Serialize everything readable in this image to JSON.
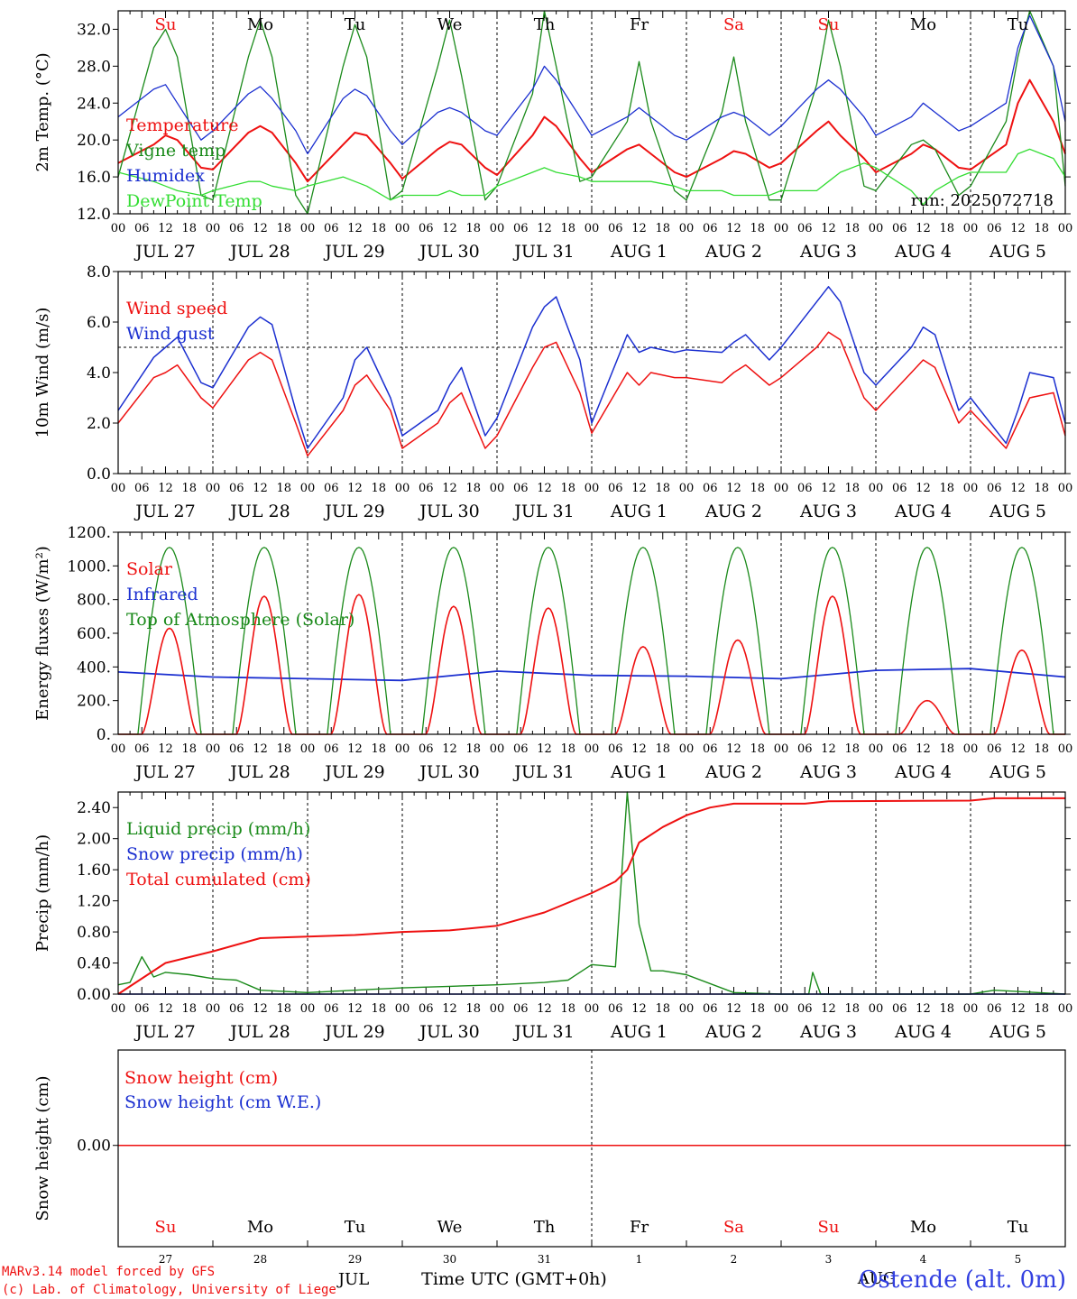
{
  "colors": {
    "temperature": "#ee1111",
    "vigne": "#1a8a1a",
    "humidex": "#1b2fd0",
    "dewpoint": "#33dd33",
    "wind_speed": "#ee1111",
    "wind_gust": "#1b2fd0",
    "solar": "#ee1111",
    "infrared": "#1b2fd0",
    "toa": "#1a8a1a",
    "liquid": "#1a8a1a",
    "snow": "#1b2fd0",
    "cumulated": "#ee1111",
    "weekend": "#ee1111",
    "weekday": "#000000",
    "location": "#3340e0",
    "credits": "#ee1111"
  },
  "days": {
    "abbrev": [
      "Su",
      "Mo",
      "Tu",
      "We",
      "Th",
      "Fr",
      "Sa",
      "Su",
      "Mo",
      "Tu"
    ],
    "weekend": [
      true,
      false,
      false,
      false,
      false,
      false,
      true,
      true,
      false,
      false
    ],
    "date_labels": [
      "JUL 27",
      "JUL 28",
      "JUL 29",
      "JUL 30",
      "JUL 31",
      "AUG  1",
      "AUG  2",
      "AUG  3",
      "AUG  4",
      "AUG  5"
    ],
    "day_numbers": [
      "27",
      "28",
      "29",
      "30",
      "31",
      "1",
      "2",
      "3",
      "4",
      "5"
    ],
    "hour_ticks": [
      "00",
      "06",
      "12",
      "18"
    ],
    "end_tick": "00"
  },
  "chart_data": [
    {
      "type": "line",
      "name": "temperature-panel",
      "ylabel": "2m Temp. (°C)",
      "ylim": [
        12,
        34
      ],
      "yticks": [
        "12.0",
        "16.0",
        "20.0",
        "24.0",
        "28.0",
        "32.0"
      ],
      "run_label": "run: 2025072718",
      "x_hours": [
        0,
        9,
        12,
        15,
        21,
        24,
        33,
        36,
        39,
        45,
        48,
        57,
        60,
        63,
        69,
        72,
        81,
        84,
        87,
        93,
        96,
        105,
        108,
        111,
        117,
        120,
        129,
        132,
        135,
        141,
        144,
        153,
        156,
        159,
        165,
        168,
        177,
        180,
        183,
        189,
        192,
        201,
        204,
        207,
        213,
        216,
        225,
        228,
        231,
        237,
        240
      ],
      "series": [
        {
          "name": "Temperature",
          "color_key": "temperature",
          "values": [
            17.5,
            19.5,
            20.5,
            20.0,
            17.0,
            16.8,
            20.8,
            21.5,
            20.8,
            17.5,
            15.5,
            19.5,
            20.8,
            20.5,
            17.5,
            15.8,
            19.0,
            19.8,
            19.5,
            17.0,
            16.2,
            20.5,
            22.5,
            21.5,
            18.0,
            16.5,
            19.0,
            19.5,
            18.5,
            16.5,
            16.0,
            18.0,
            18.8,
            18.5,
            17.0,
            17.5,
            21.0,
            22.0,
            20.5,
            18.0,
            16.5,
            18.5,
            19.5,
            19.0,
            17.0,
            16.8,
            19.5,
            24.0,
            26.5,
            22.0,
            18.5
          ]
        },
        {
          "name": "Vigne temp",
          "color_key": "vigne",
          "values": [
            16.0,
            30.0,
            32.0,
            29.0,
            14.0,
            13.5,
            29.0,
            33.0,
            29.0,
            14.0,
            12.0,
            28.0,
            32.5,
            29.0,
            13.5,
            14.5,
            28.0,
            33.0,
            27.0,
            13.5,
            15.0,
            25.0,
            34.0,
            28.0,
            15.5,
            16.0,
            22.0,
            28.5,
            22.0,
            14.5,
            13.5,
            23.0,
            29.0,
            22.0,
            13.5,
            13.5,
            26.0,
            33.0,
            28.0,
            15.0,
            14.5,
            19.5,
            20.0,
            19.0,
            14.0,
            15.0,
            22.0,
            29.0,
            34.0,
            28.0,
            15.0
          ]
        },
        {
          "name": "Humidex",
          "color_key": "humidex",
          "values": [
            22.5,
            25.5,
            26.0,
            24.0,
            20.0,
            21.0,
            25.0,
            25.8,
            24.5,
            21.0,
            18.5,
            24.5,
            25.5,
            24.8,
            21.0,
            19.5,
            23.0,
            23.5,
            23.0,
            21.0,
            20.5,
            25.5,
            28.0,
            26.5,
            22.5,
            20.5,
            22.5,
            23.5,
            22.5,
            20.5,
            20.0,
            22.5,
            23.0,
            22.5,
            20.5,
            21.5,
            25.5,
            26.5,
            25.5,
            22.5,
            20.5,
            22.5,
            24.0,
            23.0,
            21.0,
            21.5,
            24.0,
            30.0,
            33.5,
            28.0,
            22.0
          ]
        },
        {
          "name": "DewPoint Temp",
          "color_key": "dewpoint",
          "values": [
            16.5,
            15.5,
            15.0,
            14.5,
            14.0,
            14.5,
            15.5,
            15.5,
            15.0,
            14.5,
            15.0,
            16.0,
            15.5,
            15.0,
            13.5,
            14.0,
            14.0,
            14.5,
            14.0,
            14.0,
            15.0,
            16.5,
            17.0,
            16.5,
            16.0,
            15.5,
            15.5,
            15.5,
            15.5,
            15.0,
            14.5,
            14.5,
            14.0,
            14.0,
            14.0,
            14.5,
            14.5,
            15.5,
            16.5,
            17.5,
            17.0,
            14.5,
            13.0,
            14.5,
            16.0,
            16.5,
            16.5,
            18.5,
            19.0,
            18.0,
            16.0
          ]
        }
      ]
    },
    {
      "type": "line",
      "name": "wind-panel",
      "ylabel": "10m Wind (m/s)",
      "ylim": [
        0,
        8
      ],
      "yticks": [
        "0.0",
        "2.0",
        "4.0",
        "6.0",
        "8.0"
      ],
      "ref_line": 5,
      "x_hours": [
        0,
        9,
        12,
        15,
        21,
        24,
        33,
        36,
        39,
        45,
        48,
        57,
        60,
        63,
        69,
        72,
        81,
        84,
        87,
        93,
        96,
        105,
        108,
        111,
        117,
        120,
        129,
        132,
        135,
        141,
        144,
        153,
        156,
        159,
        165,
        168,
        177,
        180,
        183,
        189,
        192,
        201,
        204,
        207,
        213,
        216,
        225,
        228,
        231,
        237,
        240
      ],
      "series": [
        {
          "name": "Wind speed",
          "color_key": "wind_speed",
          "values": [
            2.0,
            3.8,
            4.0,
            4.3,
            3.0,
            2.6,
            4.5,
            4.8,
            4.5,
            2.0,
            0.7,
            2.5,
            3.5,
            3.9,
            2.5,
            1.0,
            2.0,
            2.8,
            3.2,
            1.0,
            1.5,
            4.2,
            5.0,
            5.2,
            3.2,
            1.6,
            4.0,
            3.5,
            4.0,
            3.8,
            3.8,
            3.6,
            4.0,
            4.3,
            3.5,
            3.8,
            5.0,
            5.6,
            5.3,
            3.0,
            2.5,
            4.0,
            4.5,
            4.2,
            2.0,
            2.5,
            1.0,
            2.0,
            3.0,
            3.2,
            1.5
          ]
        },
        {
          "name": "Wind gust",
          "color_key": "wind_gust",
          "values": [
            2.5,
            4.6,
            5.0,
            5.4,
            3.6,
            3.4,
            5.8,
            6.2,
            5.9,
            2.5,
            1.0,
            3.0,
            4.5,
            5.0,
            3.0,
            1.5,
            2.5,
            3.5,
            4.2,
            1.5,
            2.2,
            5.8,
            6.6,
            7.0,
            4.5,
            2.0,
            5.5,
            4.8,
            5.0,
            4.8,
            4.9,
            4.8,
            5.2,
            5.5,
            4.5,
            5.0,
            6.8,
            7.4,
            6.8,
            4.0,
            3.5,
            5.0,
            5.8,
            5.5,
            2.5,
            3.0,
            1.2,
            2.5,
            4.0,
            3.8,
            2.0
          ]
        }
      ]
    },
    {
      "type": "line",
      "name": "energy-panel",
      "ylabel": "Energy fluxes (W/m²)",
      "ylim": [
        0,
        1200
      ],
      "yticks": [
        "0.",
        "200.",
        "400.",
        "600.",
        "800.",
        "1000.",
        "1200."
      ],
      "daily_solar_peaks": [
        630,
        820,
        830,
        760,
        750,
        520,
        560,
        820,
        200,
        500
      ],
      "toa_peak": 1110,
      "series": [
        {
          "name": "Solar",
          "color_key": "solar"
        },
        {
          "name": "Infrared",
          "color_key": "infrared",
          "x_hours": [
            0,
            24,
            48,
            72,
            96,
            120,
            144,
            168,
            192,
            216,
            240
          ],
          "values": [
            370,
            340,
            330,
            320,
            375,
            350,
            345,
            330,
            380,
            390,
            340
          ]
        },
        {
          "name": "Top of Atmosphere (Solar)",
          "color_key": "toa"
        }
      ]
    },
    {
      "type": "line",
      "name": "precip-panel",
      "ylabel": "Precip (mm/h)",
      "ylim": [
        0,
        2.6
      ],
      "yticks": [
        "0.00",
        "0.40",
        "0.80",
        "1.20",
        "1.60",
        "2.00",
        "2.40"
      ],
      "series": [
        {
          "name": "Liquid precip (mm/h)",
          "color_key": "liquid",
          "x_hours": [
            0,
            3,
            6,
            9,
            12,
            18,
            24,
            30,
            36,
            48,
            60,
            72,
            84,
            96,
            108,
            114,
            120,
            126,
            129,
            132,
            135,
            138,
            144,
            156,
            168,
            175,
            176,
            178,
            192,
            216,
            222,
            240
          ],
          "values": [
            0.12,
            0.15,
            0.48,
            0.22,
            0.28,
            0.25,
            0.2,
            0.18,
            0.05,
            0.02,
            0.05,
            0.08,
            0.1,
            0.12,
            0.15,
            0.18,
            0.38,
            0.35,
            2.6,
            0.9,
            0.3,
            0.3,
            0.25,
            0.02,
            0.0,
            0.0,
            0.28,
            0.0,
            0.0,
            0.0,
            0.05,
            0.0
          ]
        },
        {
          "name": "Snow precip (mm/h)",
          "color_key": "snow",
          "x_hours": [
            0,
            240
          ],
          "values": [
            0.0,
            0.0
          ]
        },
        {
          "name": "Total cumulated (cm)",
          "color_key": "cumulated",
          "x_hours": [
            0,
            12,
            24,
            36,
            48,
            60,
            72,
            84,
            96,
            108,
            120,
            126,
            129,
            132,
            138,
            144,
            150,
            156,
            168,
            174,
            180,
            216,
            222,
            240
          ],
          "values": [
            0.0,
            0.4,
            0.55,
            0.72,
            0.74,
            0.76,
            0.8,
            0.82,
            0.88,
            1.05,
            1.3,
            1.45,
            1.6,
            1.95,
            2.15,
            2.3,
            2.4,
            2.45,
            2.45,
            2.45,
            2.48,
            2.49,
            2.52,
            2.52
          ]
        }
      ]
    },
    {
      "type": "line",
      "name": "snow-panel",
      "ylabel": "Snow height (cm)",
      "yticks": [
        "0.00"
      ],
      "series": [
        {
          "name": "Snow height (cm)",
          "color_key": "temperature",
          "x_hours": [
            0,
            240
          ],
          "values": [
            0,
            0
          ]
        },
        {
          "name": "Snow height (cm W.E.)",
          "color_key": "humidex",
          "x_hours": [
            0,
            240
          ],
          "values": [
            0,
            0
          ]
        }
      ]
    }
  ],
  "footer": {
    "month_jul": "JUL",
    "month_aug": "AUG",
    "xlabel": "Time UTC (GMT+0h)",
    "location": "Ostende (alt. 0m)",
    "credit_line1": "MARv3.14 model forced by GFS",
    "credit_line2": "(c) Lab. of Climatology, University of Liege"
  }
}
